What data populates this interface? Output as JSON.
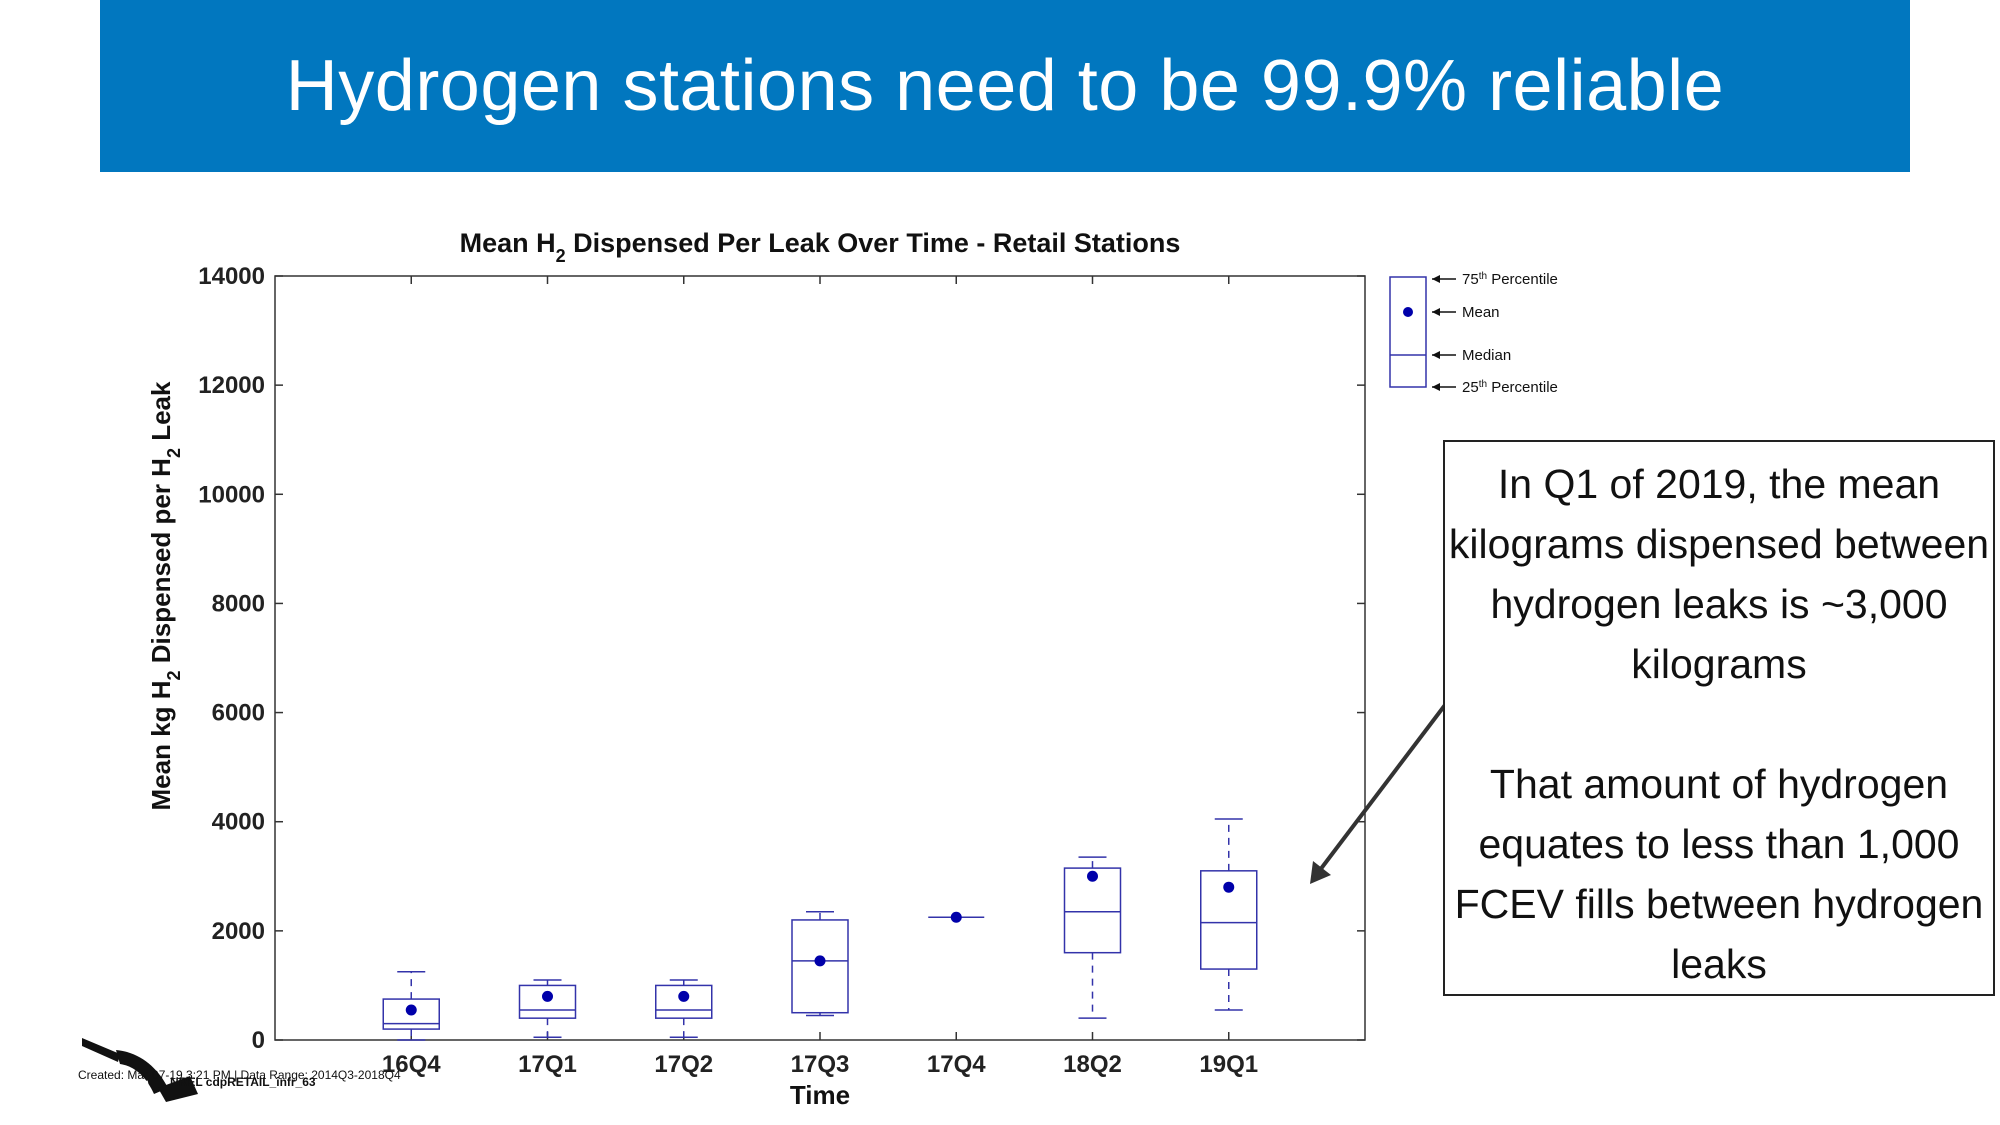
{
  "banner": {
    "title": "Hydrogen stations need to be 99.9% reliable",
    "color": "#0177bf"
  },
  "chart_data": {
    "type": "boxplot",
    "title_parts": [
      "Mean H",
      "2",
      " Dispensed Per Leak Over Time - Retail Stations"
    ],
    "xlabel": "Time",
    "ylabel_parts": [
      "Mean kg H",
      "2",
      " Dispensed per H",
      "2",
      " Leak"
    ],
    "ylim": [
      0,
      14000
    ],
    "yticks": [
      0,
      2000,
      4000,
      6000,
      8000,
      10000,
      12000,
      14000
    ],
    "categories": [
      "16Q4",
      "17Q1",
      "17Q2",
      "17Q3",
      "17Q4",
      "18Q2",
      "19Q1"
    ],
    "boxes": [
      {
        "min": 0,
        "q1": 200,
        "median": 300,
        "q3": 750,
        "max": 1250,
        "mean": 550
      },
      {
        "min": 50,
        "q1": 400,
        "median": 550,
        "q3": 1000,
        "max": 1100,
        "mean": 800
      },
      {
        "min": 50,
        "q1": 400,
        "median": 550,
        "q3": 1000,
        "max": 1100,
        "mean": 800
      },
      {
        "min": 450,
        "q1": 500,
        "median": 1450,
        "q3": 2200,
        "max": 2350,
        "mean": 1450
      },
      {
        "min": 2250,
        "q1": 2250,
        "median": 2250,
        "q3": 2250,
        "max": 2250,
        "mean": 2250
      },
      {
        "min": 400,
        "q1": 1600,
        "median": 2350,
        "q3": 3150,
        "max": 3350,
        "mean": 3000
      },
      {
        "min": 550,
        "q1": 1300,
        "median": 2150,
        "q3": 3100,
        "max": 4050,
        "mean": 2800
      }
    ],
    "box_color": "#3333aa",
    "mean_color": "#0000aa",
    "grid": false,
    "legend": {
      "position": "top-right",
      "entries": [
        {
          "label": "75",
          "sup": "th",
          "rest": " Percentile"
        },
        {
          "label": "Mean",
          "sup": "",
          "rest": ""
        },
        {
          "label": "Median",
          "sup": "",
          "rest": ""
        },
        {
          "label": "25",
          "sup": "th",
          "rest": " Percentile"
        }
      ]
    }
  },
  "callout": {
    "paragraph1": "In Q1 of 2019, the mean kilograms dispensed between hydrogen leaks is ~3,000 kilograms",
    "paragraph2": "That amount of hydrogen equates to less than 1,000 FCEV fills between hydrogen leaks"
  },
  "footer": {
    "source": "NREL cdpRETAIL_infr_63",
    "created": "Created: Mar-07-19  3:21 PM | Data Range: 2014Q3-2018Q4",
    "logo_icon": "fuel-nozzle-icon"
  }
}
